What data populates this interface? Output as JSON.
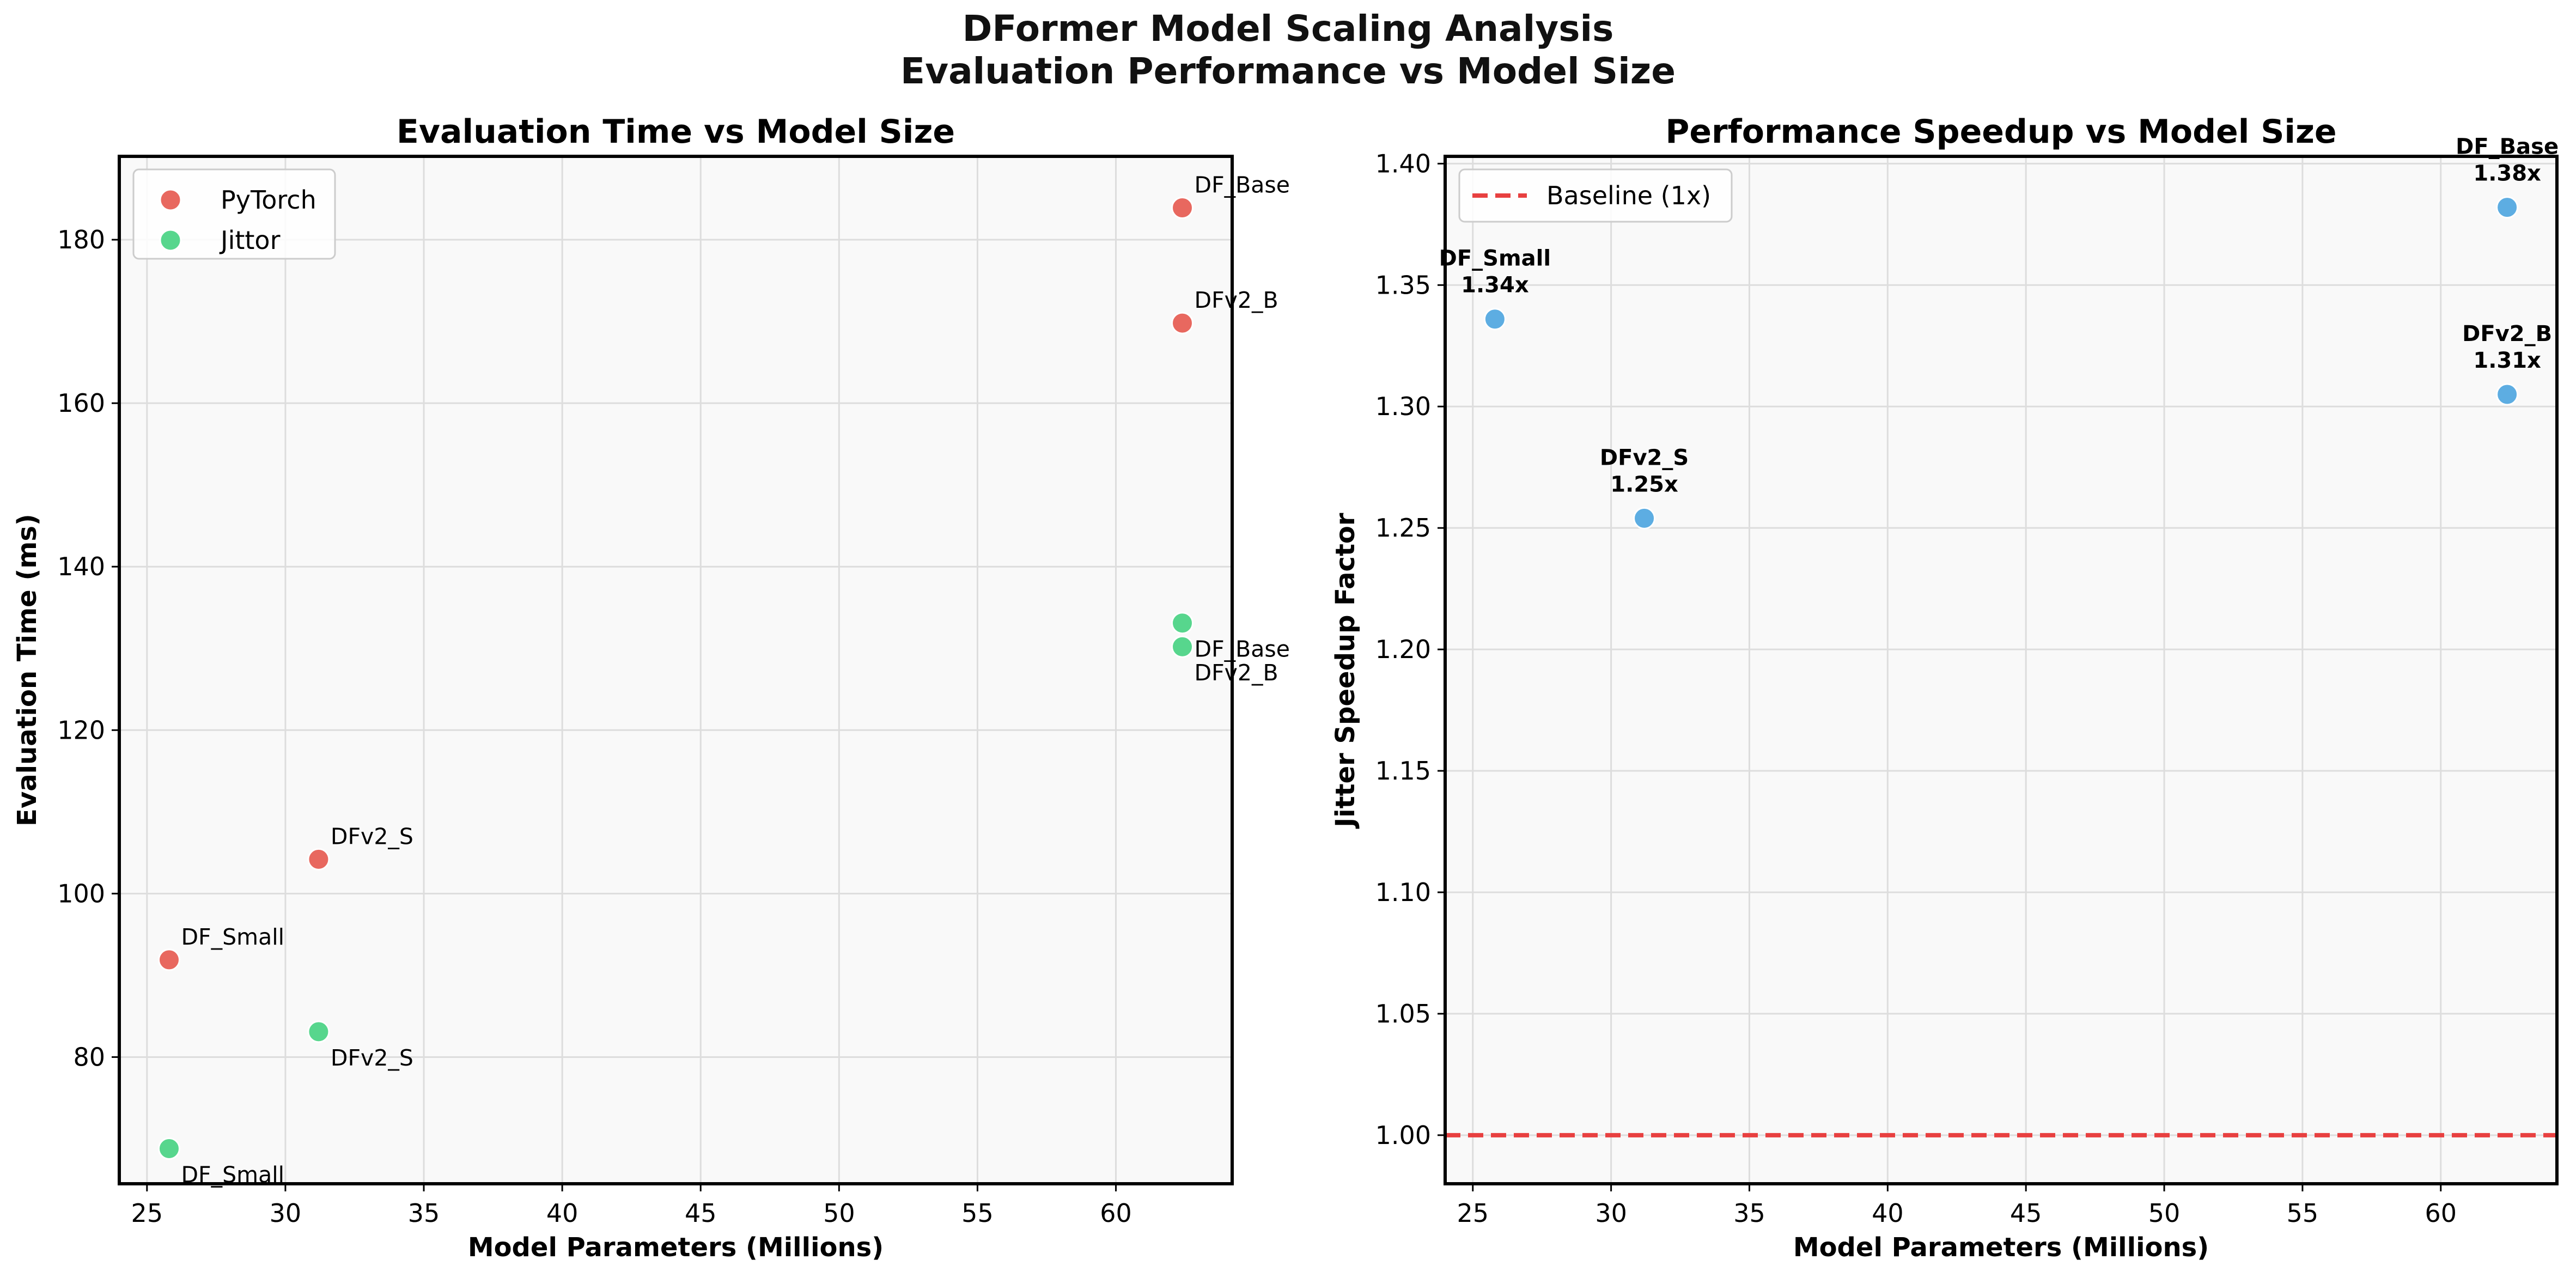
{
  "figure": {
    "title_line1": "DFormer Model Scaling Analysis",
    "title_line2": "Evaluation Performance vs Model Size"
  },
  "colors": {
    "pytorch": "#E8685F",
    "jittor": "#57D68D",
    "speedup": "#5DADE2",
    "baseline": "#E84040",
    "plot_bg": "#F9F9F9",
    "grid": "#DDDDDD"
  },
  "chart_data": [
    {
      "type": "scatter",
      "title": "Evaluation Time vs Model Size",
      "xlabel": "Model Parameters (Millions)",
      "ylabel": "Evaluation Time (ms)",
      "xlim": [
        24,
        64.2
      ],
      "ylim": [
        64.5,
        190.2
      ],
      "xticks": [
        25,
        30,
        35,
        40,
        45,
        50,
        55,
        60
      ],
      "yticks": [
        80,
        100,
        120,
        140,
        160,
        180
      ],
      "grid": true,
      "legend": {
        "position": "top-left",
        "entries": [
          "PyTorch",
          "Jittor"
        ]
      },
      "series": [
        {
          "name": "PyTorch",
          "color_key": "pytorch",
          "points": [
            {
              "label": "DF_Small",
              "x": 25.8,
              "y": 91.9
            },
            {
              "label": "DFv2_S",
              "x": 31.2,
              "y": 104.2
            },
            {
              "label": "DFv2_B",
              "x": 62.4,
              "y": 169.8
            },
            {
              "label": "DF_Base",
              "x": 62.4,
              "y": 183.9
            }
          ]
        },
        {
          "name": "Jittor",
          "color_key": "jittor",
          "points": [
            {
              "label": "DF_Small",
              "x": 25.8,
              "y": 68.8
            },
            {
              "label": "DFv2_S",
              "x": 31.2,
              "y": 83.1
            },
            {
              "label": "DF_Base",
              "x": 62.4,
              "y": 133.1
            },
            {
              "label": "DFv2_B",
              "x": 62.4,
              "y": 130.2
            }
          ]
        }
      ]
    },
    {
      "type": "scatter",
      "title": "Performance Speedup vs Model Size",
      "xlabel": "Model Parameters (Millions)",
      "ylabel": "Jitter Speedup Factor",
      "xlim": [
        24,
        64.2
      ],
      "ylim": [
        0.98,
        1.403
      ],
      "xticks": [
        25,
        30,
        35,
        40,
        45,
        50,
        55,
        60
      ],
      "yticks": [
        "1.00",
        "1.05",
        "1.10",
        "1.15",
        "1.20",
        "1.25",
        "1.30",
        "1.35",
        "1.40"
      ],
      "grid": true,
      "legend": {
        "position": "top-left",
        "entries": [
          "Baseline (1x)"
        ]
      },
      "baseline": {
        "y": 1.0,
        "label": "Baseline (1x)"
      },
      "series": [
        {
          "name": "",
          "color_key": "speedup",
          "points": [
            {
              "label": "DF_Small",
              "value_label": "1.34x",
              "x": 25.8,
              "y": 1.336
            },
            {
              "label": "DFv2_S",
              "value_label": "1.25x",
              "x": 31.2,
              "y": 1.254
            },
            {
              "label": "DFv2_B",
              "value_label": "1.31x",
              "x": 62.4,
              "y": 1.305
            },
            {
              "label": "DF_Base",
              "value_label": "1.38x",
              "x": 62.4,
              "y": 1.382
            }
          ]
        }
      ]
    }
  ]
}
